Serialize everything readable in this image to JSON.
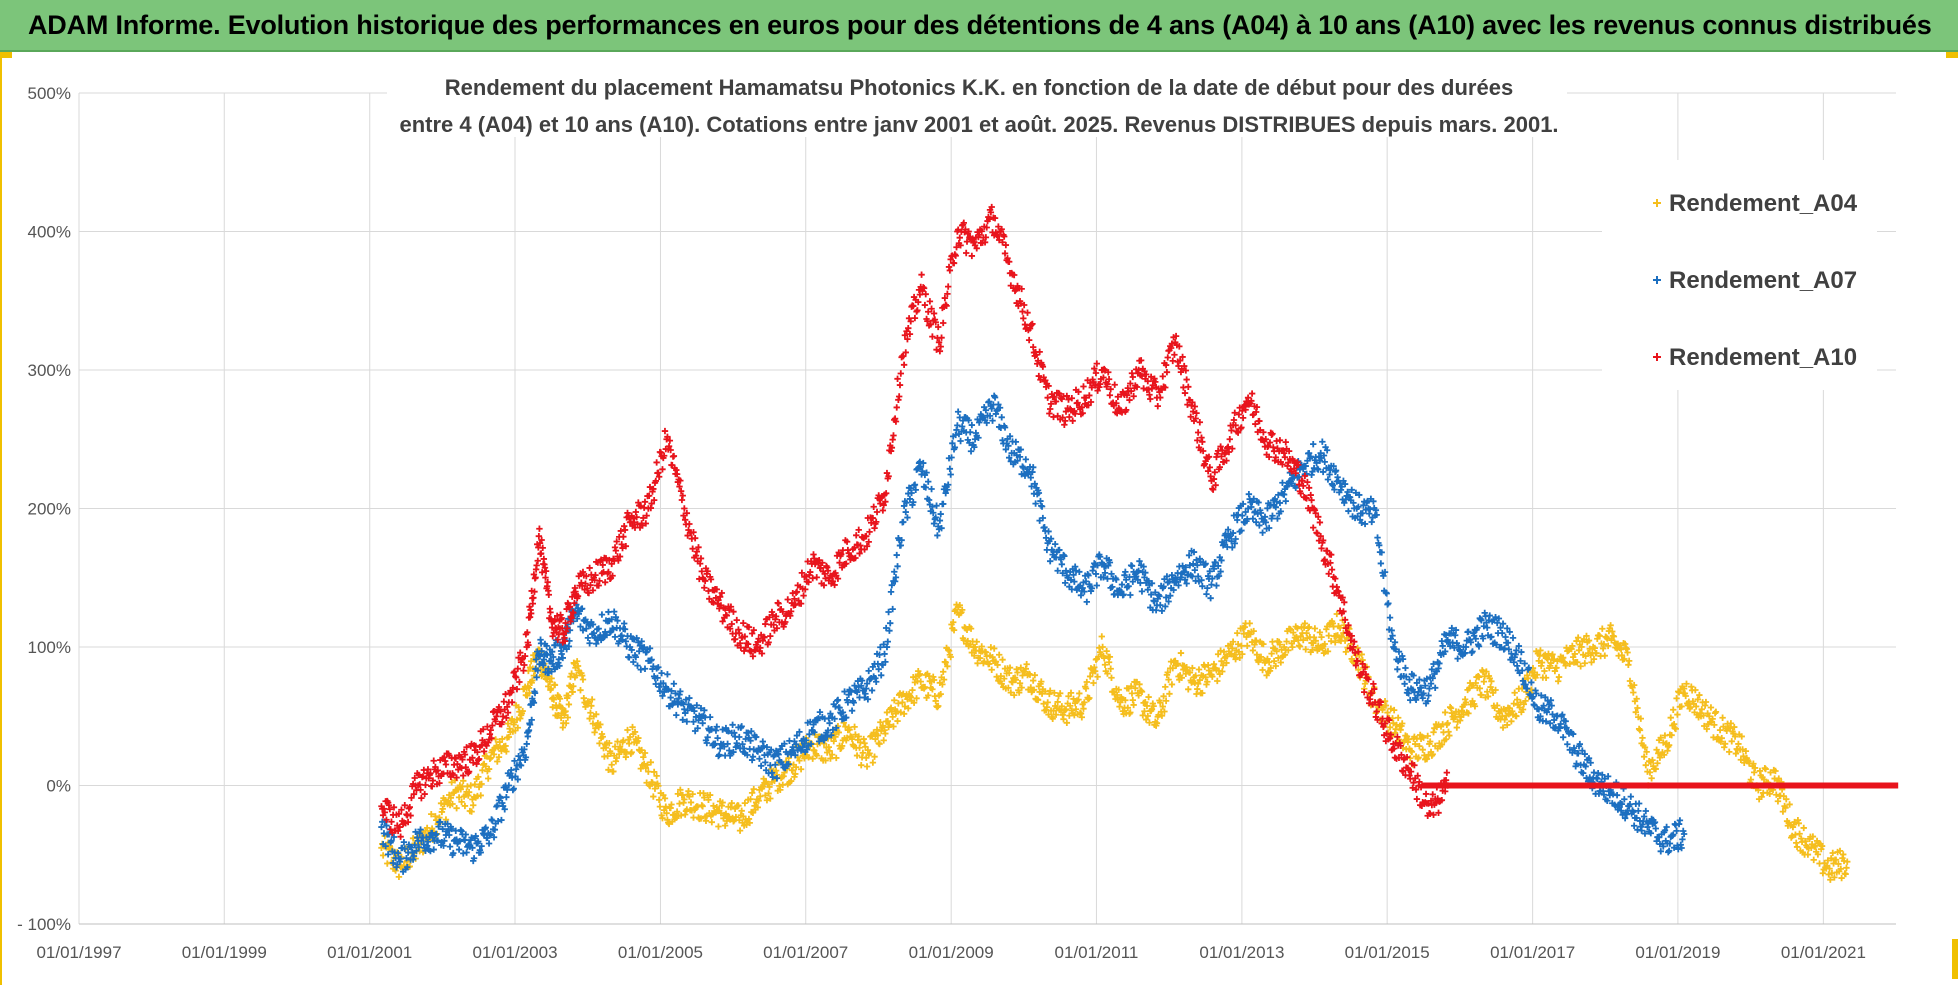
{
  "header": {
    "title": "ADAM Informe. Evolution historique des performances en euros pour des détentions de 4 ans (A04) à 10 ans (A10) avec les revenus connus distribués"
  },
  "colors": {
    "header_bg": "#7cc57a",
    "A04": "#f5be1e",
    "A07": "#1c6fc0",
    "A10": "#e8141c",
    "grid": "#d9d9d9"
  },
  "chart_data": {
    "type": "scatter",
    "title_line1": "Rendement du placement Hamamatsu Photonics K.K. en fonction de la date de début pour des durées",
    "title_line2": "entre 4 (A04) et 10 ans (A10). Cotations entre janv 2001 et août. 2025. Revenus DISTRIBUES depuis mars. 2001.",
    "xlabel": "",
    "ylabel": "",
    "x_range": [
      "1997-01-01",
      "2022-01-01"
    ],
    "ylim": [
      -100,
      500
    ],
    "y_ticks": [
      -100,
      0,
      100,
      200,
      300,
      400,
      500
    ],
    "y_tick_labels": [
      "- 100%",
      "0%",
      "100%",
      "200%",
      "300%",
      "400%",
      "500%"
    ],
    "x_ticks": [
      "1997-01-01",
      "1999-01-01",
      "2001-01-01",
      "2003-01-01",
      "2005-01-01",
      "2007-01-01",
      "2009-01-01",
      "2011-01-01",
      "2013-01-01",
      "2015-01-01",
      "2017-01-01",
      "2019-01-01",
      "2021-01-01"
    ],
    "x_tick_labels": [
      "01/01/1997",
      "01/01/1999",
      "01/01/2001",
      "01/01/2003",
      "01/01/2005",
      "01/01/2007",
      "01/01/2009",
      "01/01/2011",
      "01/01/2013",
      "01/01/2015",
      "01/01/2017",
      "01/01/2019",
      "01/01/2021"
    ],
    "grid": true,
    "legend_position": "top-right",
    "series": [
      {
        "name": "Rendement_A04",
        "color": "#f5be1e",
        "points": [
          [
            "2001-03-01",
            -45
          ],
          [
            "2001-06-01",
            -58
          ],
          [
            "2001-09-01",
            -45
          ],
          [
            "2001-12-01",
            -25
          ],
          [
            "2002-03-01",
            -5
          ],
          [
            "2002-06-01",
            -10
          ],
          [
            "2002-09-01",
            20
          ],
          [
            "2002-12-01",
            35
          ],
          [
            "2003-03-01",
            70
          ],
          [
            "2003-05-01",
            95
          ],
          [
            "2003-07-01",
            70
          ],
          [
            "2003-09-01",
            45
          ],
          [
            "2003-11-01",
            85
          ],
          [
            "2004-02-01",
            50
          ],
          [
            "2004-05-01",
            15
          ],
          [
            "2004-08-01",
            35
          ],
          [
            "2004-11-01",
            10
          ],
          [
            "2005-02-01",
            -20
          ],
          [
            "2005-05-01",
            -10
          ],
          [
            "2005-08-01",
            -15
          ],
          [
            "2005-11-01",
            -20
          ],
          [
            "2006-02-01",
            -25
          ],
          [
            "2006-05-01",
            -10
          ],
          [
            "2006-08-01",
            5
          ],
          [
            "2006-11-01",
            15
          ],
          [
            "2007-02-01",
            30
          ],
          [
            "2007-05-01",
            25
          ],
          [
            "2007-08-01",
            40
          ],
          [
            "2007-11-01",
            20
          ],
          [
            "2008-02-01",
            40
          ],
          [
            "2008-05-01",
            60
          ],
          [
            "2008-08-01",
            75
          ],
          [
            "2008-11-01",
            65
          ],
          [
            "2009-02-01",
            125
          ],
          [
            "2009-05-01",
            100
          ],
          [
            "2009-08-01",
            90
          ],
          [
            "2009-11-01",
            75
          ],
          [
            "2010-02-01",
            80
          ],
          [
            "2010-05-01",
            60
          ],
          [
            "2010-08-01",
            55
          ],
          [
            "2010-11-01",
            60
          ],
          [
            "2011-02-01",
            100
          ],
          [
            "2011-05-01",
            60
          ],
          [
            "2011-08-01",
            65
          ],
          [
            "2011-11-01",
            45
          ],
          [
            "2012-02-01",
            90
          ],
          [
            "2012-05-01",
            75
          ],
          [
            "2012-08-01",
            80
          ],
          [
            "2012-11-01",
            95
          ],
          [
            "2013-02-01",
            110
          ],
          [
            "2013-05-01",
            90
          ],
          [
            "2013-08-01",
            100
          ],
          [
            "2013-11-01",
            110
          ],
          [
            "2014-02-01",
            100
          ],
          [
            "2014-05-01",
            115
          ],
          [
            "2014-08-01",
            95
          ],
          [
            "2014-11-01",
            60
          ],
          [
            "2015-02-01",
            45
          ],
          [
            "2015-05-01",
            25
          ],
          [
            "2015-08-01",
            30
          ],
          [
            "2015-11-01",
            45
          ],
          [
            "2016-02-01",
            60
          ],
          [
            "2016-05-01",
            75
          ],
          [
            "2016-08-01",
            50
          ],
          [
            "2016-11-01",
            60
          ],
          [
            "2017-02-01",
            90
          ],
          [
            "2017-05-01",
            85
          ],
          [
            "2017-08-01",
            95
          ],
          [
            "2017-11-01",
            100
          ],
          [
            "2018-02-01",
            105
          ],
          [
            "2018-05-01",
            90
          ],
          [
            "2018-08-01",
            10
          ],
          [
            "2018-11-01",
            30
          ],
          [
            "2019-02-01",
            70
          ],
          [
            "2019-05-01",
            55
          ],
          [
            "2019-08-01",
            40
          ],
          [
            "2019-11-01",
            30
          ],
          [
            "2020-02-01",
            0
          ],
          [
            "2020-05-01",
            5
          ],
          [
            "2020-08-01",
            -30
          ],
          [
            "2020-11-01",
            -45
          ],
          [
            "2021-02-01",
            -60
          ],
          [
            "2021-05-01",
            -55
          ]
        ]
      },
      {
        "name": "Rendement_A07",
        "color": "#1c6fc0",
        "points": [
          [
            "2001-03-01",
            -30
          ],
          [
            "2001-06-01",
            -55
          ],
          [
            "2001-09-01",
            -40
          ],
          [
            "2001-12-01",
            -35
          ],
          [
            "2002-03-01",
            -40
          ],
          [
            "2002-06-01",
            -45
          ],
          [
            "2002-09-01",
            -35
          ],
          [
            "2002-12-01",
            0
          ],
          [
            "2003-03-01",
            30
          ],
          [
            "2003-05-01",
            95
          ],
          [
            "2003-07-01",
            90
          ],
          [
            "2003-09-01",
            100
          ],
          [
            "2003-11-01",
            125
          ],
          [
            "2004-02-01",
            110
          ],
          [
            "2004-05-01",
            120
          ],
          [
            "2004-08-01",
            100
          ],
          [
            "2004-11-01",
            90
          ],
          [
            "2005-02-01",
            70
          ],
          [
            "2005-05-01",
            55
          ],
          [
            "2005-08-01",
            45
          ],
          [
            "2005-11-01",
            30
          ],
          [
            "2006-02-01",
            35
          ],
          [
            "2006-05-01",
            25
          ],
          [
            "2006-08-01",
            15
          ],
          [
            "2006-11-01",
            25
          ],
          [
            "2007-02-01",
            40
          ],
          [
            "2007-05-01",
            45
          ],
          [
            "2007-08-01",
            60
          ],
          [
            "2007-11-01",
            70
          ],
          [
            "2008-02-01",
            95
          ],
          [
            "2008-05-01",
            190
          ],
          [
            "2008-08-01",
            230
          ],
          [
            "2008-11-01",
            185
          ],
          [
            "2009-02-01",
            260
          ],
          [
            "2009-05-01",
            250
          ],
          [
            "2009-08-01",
            275
          ],
          [
            "2009-11-01",
            240
          ],
          [
            "2010-02-01",
            230
          ],
          [
            "2010-05-01",
            175
          ],
          [
            "2010-08-01",
            155
          ],
          [
            "2010-11-01",
            140
          ],
          [
            "2011-02-01",
            160
          ],
          [
            "2011-05-01",
            140
          ],
          [
            "2011-08-01",
            155
          ],
          [
            "2011-11-01",
            130
          ],
          [
            "2012-02-01",
            150
          ],
          [
            "2012-05-01",
            160
          ],
          [
            "2012-08-01",
            145
          ],
          [
            "2012-11-01",
            180
          ],
          [
            "2013-02-01",
            200
          ],
          [
            "2013-05-01",
            190
          ],
          [
            "2013-08-01",
            210
          ],
          [
            "2013-11-01",
            230
          ],
          [
            "2014-02-01",
            240
          ],
          [
            "2014-05-01",
            220
          ],
          [
            "2014-08-01",
            200
          ],
          [
            "2014-11-01",
            195
          ],
          [
            "2015-02-01",
            100
          ],
          [
            "2015-05-01",
            70
          ],
          [
            "2015-08-01",
            70
          ],
          [
            "2015-11-01",
            105
          ],
          [
            "2016-02-01",
            100
          ],
          [
            "2016-05-01",
            115
          ],
          [
            "2016-08-01",
            110
          ],
          [
            "2016-11-01",
            90
          ],
          [
            "2017-02-01",
            55
          ],
          [
            "2017-05-01",
            50
          ],
          [
            "2017-08-01",
            25
          ],
          [
            "2017-11-01",
            5
          ],
          [
            "2018-02-01",
            -5
          ],
          [
            "2018-05-01",
            -15
          ],
          [
            "2018-08-01",
            -30
          ],
          [
            "2018-11-01",
            -40
          ],
          [
            "2019-02-01",
            -35
          ]
        ]
      },
      {
        "name": "Rendement_A10",
        "color": "#e8141c",
        "points": [
          [
            "2001-03-01",
            -15
          ],
          [
            "2001-06-01",
            -30
          ],
          [
            "2001-09-01",
            0
          ],
          [
            "2001-12-01",
            10
          ],
          [
            "2002-03-01",
            15
          ],
          [
            "2002-06-01",
            20
          ],
          [
            "2002-09-01",
            40
          ],
          [
            "2002-12-01",
            60
          ],
          [
            "2003-03-01",
            100
          ],
          [
            "2003-05-01",
            180
          ],
          [
            "2003-07-01",
            120
          ],
          [
            "2003-09-01",
            110
          ],
          [
            "2003-11-01",
            140
          ],
          [
            "2004-02-01",
            150
          ],
          [
            "2004-05-01",
            160
          ],
          [
            "2004-08-01",
            190
          ],
          [
            "2004-11-01",
            200
          ],
          [
            "2005-02-01",
            250
          ],
          [
            "2005-05-01",
            200
          ],
          [
            "2005-08-01",
            150
          ],
          [
            "2005-11-01",
            130
          ],
          [
            "2006-02-01",
            110
          ],
          [
            "2006-05-01",
            100
          ],
          [
            "2006-08-01",
            120
          ],
          [
            "2006-11-01",
            130
          ],
          [
            "2007-02-01",
            160
          ],
          [
            "2007-05-01",
            150
          ],
          [
            "2007-08-01",
            170
          ],
          [
            "2007-11-01",
            180
          ],
          [
            "2008-02-01",
            210
          ],
          [
            "2008-05-01",
            310
          ],
          [
            "2008-08-01",
            360
          ],
          [
            "2008-11-01",
            320
          ],
          [
            "2009-02-01",
            400
          ],
          [
            "2009-05-01",
            390
          ],
          [
            "2009-08-01",
            410
          ],
          [
            "2009-11-01",
            370
          ],
          [
            "2010-02-01",
            330
          ],
          [
            "2010-05-01",
            280
          ],
          [
            "2010-08-01",
            270
          ],
          [
            "2010-11-01",
            280
          ],
          [
            "2011-02-01",
            300
          ],
          [
            "2011-05-01",
            270
          ],
          [
            "2011-08-01",
            300
          ],
          [
            "2011-11-01",
            280
          ],
          [
            "2012-02-01",
            320
          ],
          [
            "2012-05-01",
            270
          ],
          [
            "2012-08-01",
            220
          ],
          [
            "2012-11-01",
            250
          ],
          [
            "2013-02-01",
            280
          ],
          [
            "2013-05-01",
            250
          ],
          [
            "2013-08-01",
            240
          ],
          [
            "2013-11-01",
            220
          ],
          [
            "2014-02-01",
            180
          ],
          [
            "2014-05-01",
            140
          ],
          [
            "2014-08-01",
            90
          ],
          [
            "2014-11-01",
            60
          ],
          [
            "2015-02-01",
            30
          ],
          [
            "2015-05-01",
            10
          ],
          [
            "2015-08-01",
            -20
          ],
          [
            "2015-11-01",
            0
          ]
        ]
      }
    ]
  }
}
